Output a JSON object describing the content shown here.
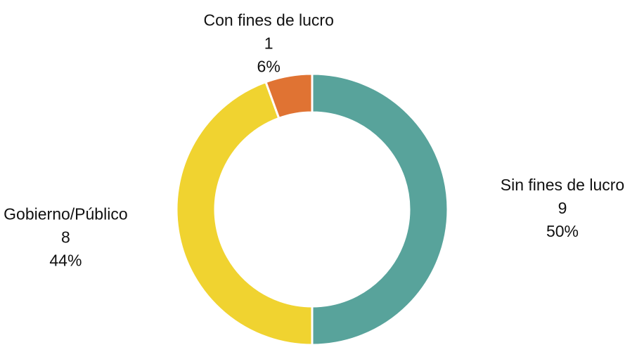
{
  "chart_data": {
    "type": "donut",
    "categories": [
      "Sin fines de lucro",
      "Gobierno/Público",
      "Con fines de lucro"
    ],
    "values": [
      9,
      8,
      1
    ],
    "percents": [
      50,
      44,
      6
    ],
    "percent_labels": [
      "50%",
      "44%",
      "6%"
    ],
    "colors": [
      "#58a39b",
      "#f0d330",
      "#e07333"
    ]
  }
}
